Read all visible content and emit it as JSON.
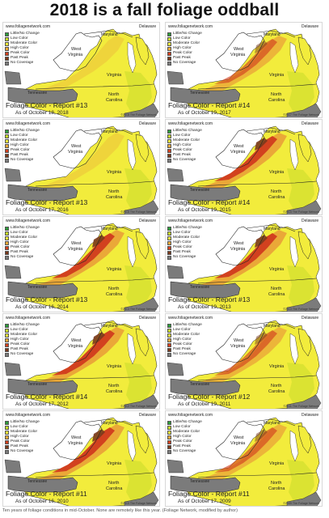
{
  "title": "2018 is a fall foliage oddball",
  "caption": "Ten years of foliage conditions in mid-October. None are remotely like this year. (Foliage Network, modified by author)",
  "website": "www.foliagenetwork.com",
  "state_labels": {
    "maryland": "Maryland",
    "delaware": "Delaware",
    "west_virginia": "West Virginia",
    "west": "West",
    "virginia_wv": "Virginia",
    "virginia": "Virginia",
    "tennessee": "Tennessee",
    "north": "North",
    "carolina": "Carolina"
  },
  "legend": [
    {
      "label": "Little/No Change",
      "color": "#2e9b3c"
    },
    {
      "label": "Low Color",
      "color": "#c8dc2a"
    },
    {
      "label": "Moderate Color",
      "color": "#f2ec3c"
    },
    {
      "label": "High Color",
      "color": "#eaa838"
    },
    {
      "label": "Peak Color",
      "color": "#d2411f"
    },
    {
      "label": "Past Peak",
      "color": "#7a3a1c"
    },
    {
      "label": "No Coverage",
      "color": "#7b7b7b"
    }
  ],
  "panels": [
    {
      "report": "Foliage Color - Report #13",
      "date": "As of October 18, 2018",
      "copyright": "©2018 The Foliage Network",
      "intensity": "low"
    },
    {
      "report": "Foliage Color - Report #14",
      "date": "As of October 19, 2017",
      "copyright": "©2017 The Foliage Network",
      "intensity": "mid"
    },
    {
      "report": "Foliage Color - Report #13",
      "date": "As of October 17, 2016",
      "copyright": "©2016 The Foliage Network",
      "intensity": "low"
    },
    {
      "report": "Foliage Color - Report #14",
      "date": "As of October 19, 2015",
      "copyright": "©2015 The Foliage Network",
      "intensity": "high"
    },
    {
      "report": "Foliage Color - Report #13",
      "date": "As of October 16, 2014",
      "copyright": "©2014 The Foliage Network",
      "intensity": "high"
    },
    {
      "report": "Foliage Color - Report #13",
      "date": "As of October 19, 2013",
      "copyright": "©2013 The Foliage Network",
      "intensity": "high"
    },
    {
      "report": "Foliage Color - Report #14",
      "date": "As of October 17, 2012",
      "copyright": "©2012 The Foliage Network",
      "intensity": "high"
    },
    {
      "report": "Foliage Color - Report #12",
      "date": "As of October 19, 2011",
      "copyright": "©2011 The Foliage Network",
      "intensity": "mid"
    },
    {
      "report": "Foliage Color - Report #11",
      "date": "As of October 16, 2010",
      "copyright": "©2010 The Foliage Network",
      "intensity": "high"
    },
    {
      "report": "Foliage Color - Report #11",
      "date": "As of October 17, 2009",
      "copyright": "©2009 The Foliage Network",
      "intensity": "mid"
    }
  ]
}
